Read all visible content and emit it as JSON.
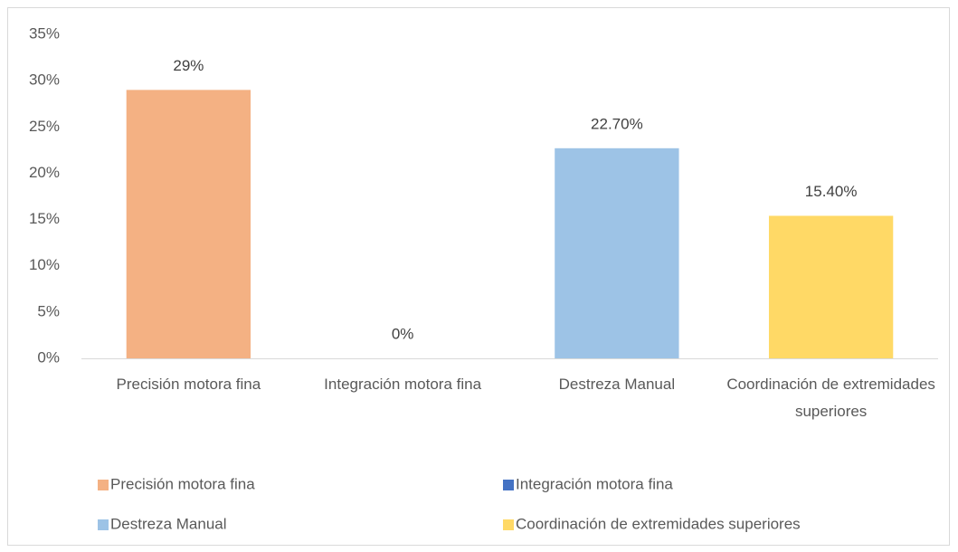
{
  "chart_data": {
    "type": "bar",
    "categories": [
      "Precisión motora fina",
      "Integración motora fina",
      "Destreza Manual",
      "Coordinación de extremidades superiores"
    ],
    "values": [
      29,
      0,
      22.7,
      15.4
    ],
    "value_labels": [
      "29%",
      "0%",
      "22.70%",
      "15.40%"
    ],
    "colors": [
      "#f4b183",
      "#4472c4",
      "#9dc3e6",
      "#ffd966"
    ],
    "ylim": [
      0,
      35
    ],
    "yticks": [
      {
        "value": 0,
        "label": "0%"
      },
      {
        "value": 5,
        "label": "5%"
      },
      {
        "value": 10,
        "label": "10%"
      },
      {
        "value": 15,
        "label": "15%"
      },
      {
        "value": 20,
        "label": "20%"
      },
      {
        "value": 25,
        "label": "25%"
      },
      {
        "value": 30,
        "label": "30%"
      },
      {
        "value": 35,
        "label": "35%"
      }
    ],
    "grid": false,
    "legend": "bottom"
  }
}
